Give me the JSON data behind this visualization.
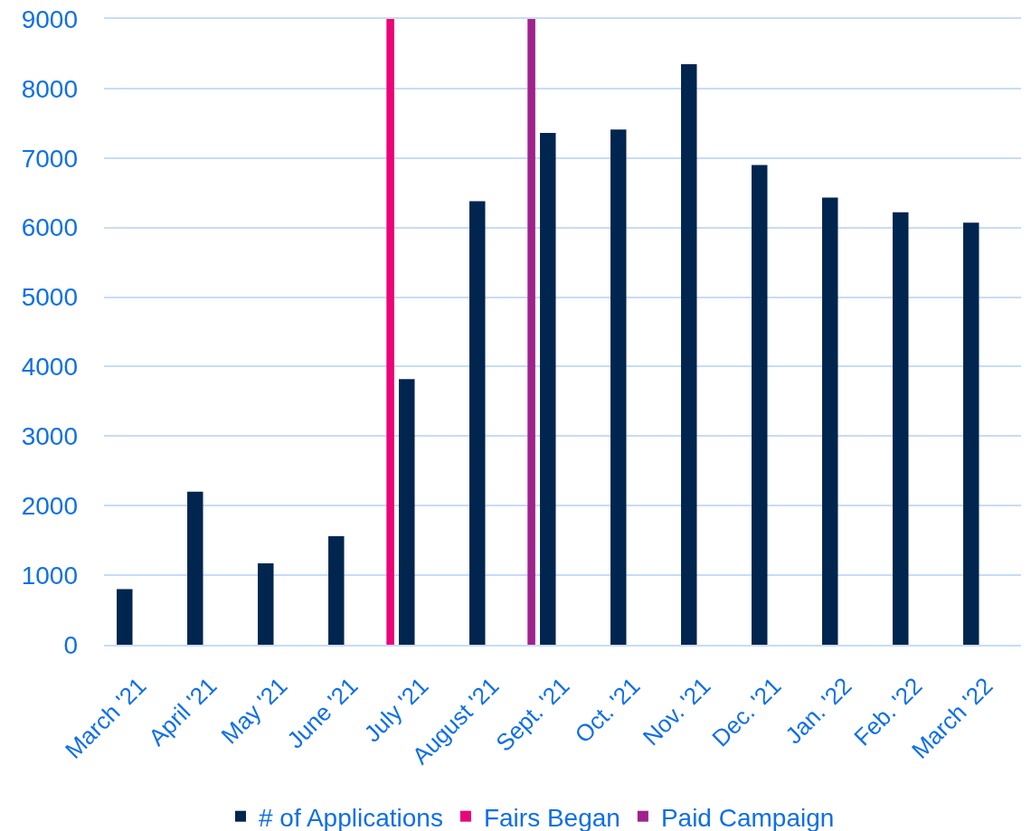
{
  "chart_data": {
    "type": "bar",
    "categories": [
      "March '21",
      "April '21",
      "May '21",
      "June '21",
      "July '21",
      "August '21",
      "Sept. '21",
      "Oct. '21",
      "Nov. '21",
      "Dec. '21",
      "Jan. '22",
      "Feb. '22",
      "March '22"
    ],
    "series": [
      {
        "name": "# of Applications",
        "color": "#00254f",
        "values": [
          800,
          2200,
          1170,
          1560,
          3820,
          6380,
          7360,
          7410,
          8350,
          6900,
          6430,
          6220,
          6070
        ]
      },
      {
        "name": "Fairs Began",
        "color": "#ea0677",
        "values": [
          null,
          null,
          null,
          null,
          9000,
          null,
          null,
          null,
          null,
          null,
          null,
          null,
          null
        ]
      },
      {
        "name": "Paid Campaign",
        "color": "#a0228c",
        "values": [
          null,
          null,
          null,
          null,
          null,
          null,
          9000,
          null,
          null,
          null,
          null,
          null,
          null
        ]
      }
    ],
    "ylim": [
      0,
      9000
    ],
    "yticks": [
      0,
      1000,
      2000,
      3000,
      4000,
      5000,
      6000,
      7000,
      8000,
      9000
    ],
    "grid": "y",
    "legend": "bottom"
  }
}
